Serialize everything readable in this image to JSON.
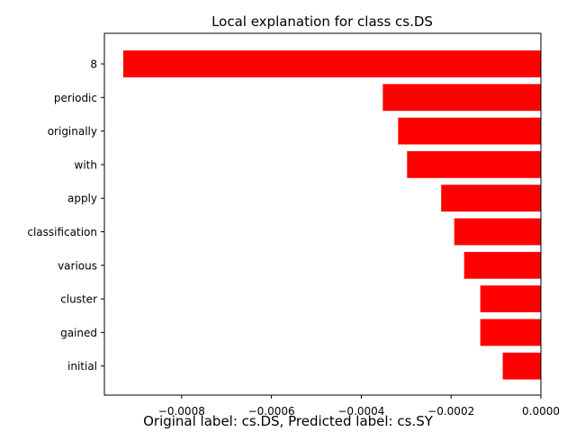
{
  "chart_data": {
    "type": "bar",
    "orientation": "horizontal",
    "title": "Local explanation for class cs.DS",
    "xlabel": "",
    "ylabel": "",
    "categories": [
      "8",
      "periodic",
      "originally",
      "with",
      "apply",
      "classification",
      "various",
      "cluster",
      "gained",
      "initial"
    ],
    "values": [
      -0.00093,
      -0.000352,
      -0.000318,
      -0.000298,
      -0.000222,
      -0.000193,
      -0.000171,
      -0.000135,
      -0.000135,
      -8.5e-05
    ],
    "xlim": [
      -0.000972,
      0.0
    ],
    "xticks": [
      -0.0008,
      -0.0006,
      -0.0004,
      -0.0002,
      0.0
    ],
    "xtick_labels": [
      "−0.0008",
      "−0.0006",
      "−0.0004",
      "−0.0002",
      "0.0000"
    ],
    "bar_color": "#ff0000",
    "grid": false,
    "legend": "none"
  },
  "caption": "Original label: cs.DS, Predicted label: cs.SY"
}
